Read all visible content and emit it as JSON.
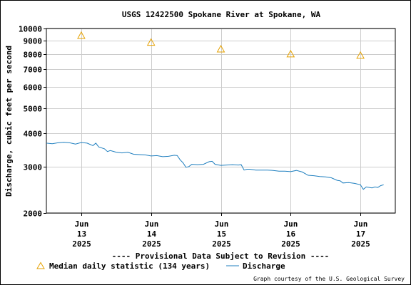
{
  "chart_data": {
    "type": "line",
    "title": "USGS 12422500 Spokane River at Spokane, WA",
    "ylabel": "Discharge, cubic feet per second",
    "yscale": "log",
    "ylim": [
      2000,
      10000
    ],
    "yticks": [
      {
        "value": 2000,
        "label": "2000"
      },
      {
        "value": 3000,
        "label": "3000"
      },
      {
        "value": 4000,
        "label": "4000"
      },
      {
        "value": 5000,
        "label": "5000"
      },
      {
        "value": 6000,
        "label": "6000"
      },
      {
        "value": 7000,
        "label": "7000"
      },
      {
        "value": 8000,
        "label": "8000"
      },
      {
        "value": 9000,
        "label": "9000"
      },
      {
        "value": 10000,
        "label": "10000"
      }
    ],
    "xlim": [
      "2025-06-12T12:00",
      "2025-06-17T12:00"
    ],
    "xticks": [
      {
        "value": "2025-06-13T00:00",
        "month": "Jun",
        "day": "13",
        "year": "2025"
      },
      {
        "value": "2025-06-14T00:00",
        "month": "Jun",
        "day": "14",
        "year": "2025"
      },
      {
        "value": "2025-06-15T00:00",
        "month": "Jun",
        "day": "15",
        "year": "2025"
      },
      {
        "value": "2025-06-16T00:00",
        "month": "Jun",
        "day": "16",
        "year": "2025"
      },
      {
        "value": "2025-06-17T00:00",
        "month": "Jun",
        "day": "17",
        "year": "2025"
      }
    ],
    "grid": true,
    "legend_position": "bottom",
    "series": [
      {
        "name": "Median daily statistic (134 years)",
        "marker": "triangle",
        "color": "#e6a100",
        "points": [
          {
            "x": "2025-06-13T00:00",
            "y": 9400
          },
          {
            "x": "2025-06-14T00:00",
            "y": 8850
          },
          {
            "x": "2025-06-15T00:00",
            "y": 8350
          },
          {
            "x": "2025-06-16T00:00",
            "y": 8000
          },
          {
            "x": "2025-06-17T00:00",
            "y": 7900
          }
        ]
      },
      {
        "name": "Discharge",
        "marker": "none",
        "color": "#1f7fbf",
        "points": [
          {
            "x": "2025-06-12T12:00",
            "y": 3680
          },
          {
            "x": "2025-06-12T14:00",
            "y": 3660
          },
          {
            "x": "2025-06-12T16:00",
            "y": 3690
          },
          {
            "x": "2025-06-12T18:00",
            "y": 3710
          },
          {
            "x": "2025-06-12T20:00",
            "y": 3690
          },
          {
            "x": "2025-06-12T22:00",
            "y": 3650
          },
          {
            "x": "2025-06-13T00:00",
            "y": 3700
          },
          {
            "x": "2025-06-13T02:00",
            "y": 3680
          },
          {
            "x": "2025-06-13T04:00",
            "y": 3600
          },
          {
            "x": "2025-06-13T05:00",
            "y": 3680
          },
          {
            "x": "2025-06-13T06:00",
            "y": 3560
          },
          {
            "x": "2025-06-13T08:00",
            "y": 3500
          },
          {
            "x": "2025-06-13T09:00",
            "y": 3420
          },
          {
            "x": "2025-06-13T10:00",
            "y": 3450
          },
          {
            "x": "2025-06-13T12:00",
            "y": 3400
          },
          {
            "x": "2025-06-13T14:00",
            "y": 3380
          },
          {
            "x": "2025-06-13T16:00",
            "y": 3400
          },
          {
            "x": "2025-06-13T18:00",
            "y": 3340
          },
          {
            "x": "2025-06-13T20:00",
            "y": 3330
          },
          {
            "x": "2025-06-13T22:00",
            "y": 3320
          },
          {
            "x": "2025-06-14T00:00",
            "y": 3290
          },
          {
            "x": "2025-06-14T02:00",
            "y": 3300
          },
          {
            "x": "2025-06-14T04:00",
            "y": 3270
          },
          {
            "x": "2025-06-14T06:00",
            "y": 3280
          },
          {
            "x": "2025-06-14T08:00",
            "y": 3310
          },
          {
            "x": "2025-06-14T09:00",
            "y": 3300
          },
          {
            "x": "2025-06-14T10:00",
            "y": 3180
          },
          {
            "x": "2025-06-14T11:00",
            "y": 3100
          },
          {
            "x": "2025-06-14T12:00",
            "y": 2980
          },
          {
            "x": "2025-06-14T13:00",
            "y": 3000
          },
          {
            "x": "2025-06-14T14:00",
            "y": 3060
          },
          {
            "x": "2025-06-14T16:00",
            "y": 3050
          },
          {
            "x": "2025-06-14T18:00",
            "y": 3060
          },
          {
            "x": "2025-06-14T20:00",
            "y": 3130
          },
          {
            "x": "2025-06-14T21:00",
            "y": 3140
          },
          {
            "x": "2025-06-14T22:00",
            "y": 3060
          },
          {
            "x": "2025-06-15T00:00",
            "y": 3030
          },
          {
            "x": "2025-06-15T02:00",
            "y": 3040
          },
          {
            "x": "2025-06-15T04:00",
            "y": 3050
          },
          {
            "x": "2025-06-15T06:00",
            "y": 3040
          },
          {
            "x": "2025-06-15T07:00",
            "y": 3050
          },
          {
            "x": "2025-06-15T08:00",
            "y": 2910
          },
          {
            "x": "2025-06-15T09:00",
            "y": 2930
          },
          {
            "x": "2025-06-15T10:00",
            "y": 2930
          },
          {
            "x": "2025-06-15T12:00",
            "y": 2910
          },
          {
            "x": "2025-06-15T14:00",
            "y": 2910
          },
          {
            "x": "2025-06-15T16:00",
            "y": 2910
          },
          {
            "x": "2025-06-15T18:00",
            "y": 2900
          },
          {
            "x": "2025-06-15T20:00",
            "y": 2880
          },
          {
            "x": "2025-06-15T22:00",
            "y": 2880
          },
          {
            "x": "2025-06-16T00:00",
            "y": 2870
          },
          {
            "x": "2025-06-16T02:00",
            "y": 2900
          },
          {
            "x": "2025-06-16T04:00",
            "y": 2860
          },
          {
            "x": "2025-06-16T06:00",
            "y": 2780
          },
          {
            "x": "2025-06-16T08:00",
            "y": 2770
          },
          {
            "x": "2025-06-16T10:00",
            "y": 2750
          },
          {
            "x": "2025-06-16T12:00",
            "y": 2740
          },
          {
            "x": "2025-06-16T14:00",
            "y": 2720
          },
          {
            "x": "2025-06-16T16:00",
            "y": 2660
          },
          {
            "x": "2025-06-16T17:00",
            "y": 2650
          },
          {
            "x": "2025-06-16T18:00",
            "y": 2600
          },
          {
            "x": "2025-06-16T20:00",
            "y": 2610
          },
          {
            "x": "2025-06-16T22:00",
            "y": 2590
          },
          {
            "x": "2025-06-17T00:00",
            "y": 2560
          },
          {
            "x": "2025-06-17T01:00",
            "y": 2460
          },
          {
            "x": "2025-06-17T02:00",
            "y": 2510
          },
          {
            "x": "2025-06-17T04:00",
            "y": 2490
          },
          {
            "x": "2025-06-17T05:00",
            "y": 2510
          },
          {
            "x": "2025-06-17T06:00",
            "y": 2500
          },
          {
            "x": "2025-06-17T07:00",
            "y": 2540
          },
          {
            "x": "2025-06-17T08:00",
            "y": 2560
          }
        ]
      }
    ],
    "annotation": "---- Provisional Data Subject to Revision ----",
    "credit": "Graph courtesy of the U.S. Geological Survey"
  },
  "colors": {
    "annotation": "#cc0000",
    "grid": "#cccccc",
    "axis": "#000000"
  }
}
